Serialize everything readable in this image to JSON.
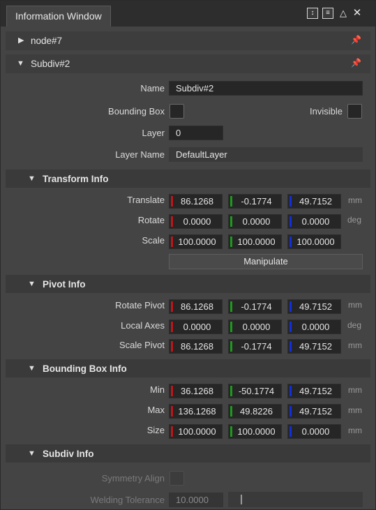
{
  "window": {
    "tab_title": "Information Window",
    "icons": [
      "sort-icon",
      "list-icon",
      "collapse-up-icon",
      "close-icon"
    ]
  },
  "node_section": {
    "title": "node#7",
    "expanded": false
  },
  "subdiv_section": {
    "title": "Subdiv#2",
    "expanded": true,
    "name_label": "Name",
    "name_value": "Subdiv#2",
    "bounding_box_label": "Bounding Box",
    "bounding_box_checked": false,
    "invisible_label": "Invisible",
    "invisible_checked": false,
    "layer_label": "Layer",
    "layer_value": "0",
    "layer_name_label": "Layer Name",
    "layer_name_value": "DefaultLayer"
  },
  "transform_info": {
    "title": "Transform Info",
    "rows": [
      {
        "label": "Translate",
        "x": "86.1268",
        "y": "-0.1774",
        "z": "49.7152",
        "unit": "mm"
      },
      {
        "label": "Rotate",
        "x": "0.0000",
        "y": "0.0000",
        "z": "0.0000",
        "unit": "deg"
      },
      {
        "label": "Scale",
        "x": "100.0000",
        "y": "100.0000",
        "z": "100.0000",
        "unit": ""
      }
    ],
    "manipulate_label": "Manipulate"
  },
  "pivot_info": {
    "title": "Pivot Info",
    "rows": [
      {
        "label": "Rotate Pivot",
        "x": "86.1268",
        "y": "-0.1774",
        "z": "49.7152",
        "unit": "mm"
      },
      {
        "label": "Local Axes",
        "x": "0.0000",
        "y": "0.0000",
        "z": "0.0000",
        "unit": "deg"
      },
      {
        "label": "Scale Pivot",
        "x": "86.1268",
        "y": "-0.1774",
        "z": "49.7152",
        "unit": "mm"
      }
    ]
  },
  "bounding_box_info": {
    "title": "Bounding Box Info",
    "rows": [
      {
        "label": "Min",
        "x": "36.1268",
        "y": "-50.1774",
        "z": "49.7152",
        "unit": "mm"
      },
      {
        "label": "Max",
        "x": "136.1268",
        "y": "49.8226",
        "z": "49.7152",
        "unit": "mm"
      },
      {
        "label": "Size",
        "x": "100.0000",
        "y": "100.0000",
        "z": "0.0000",
        "unit": "mm"
      }
    ]
  },
  "subdiv_info": {
    "title": "Subdiv Info",
    "symmetry_align_label": "Symmetry Align",
    "symmetry_align_checked": false,
    "welding_tolerance_label": "Welding Tolerance",
    "welding_tolerance_value": "10.0000",
    "welding_tolerance_slider": 0.1
  },
  "colors": {
    "x_axis": "#c0151a",
    "y_axis": "#1d9a1d",
    "z_axis": "#1330d8",
    "panel_bg": "#444444",
    "field_bg": "#262626"
  }
}
